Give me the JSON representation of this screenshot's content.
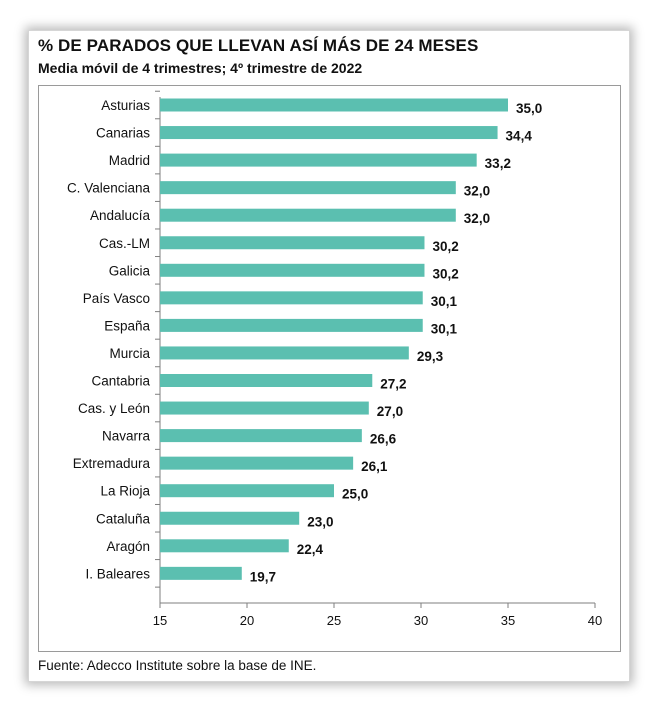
{
  "chart_data": {
    "type": "bar",
    "orientation": "horizontal",
    "title": "% DE PARADOS QUE LLEVAN ASÍ MÁS DE 24 MESES",
    "subtitle": "Media móvil de 4 trimestres; 4º trimestre de 2022",
    "categories": [
      "Asturias",
      "Canarias",
      "Madrid",
      "C. Valenciana",
      "Andalucía",
      "Cas.-LM",
      "Galicia",
      "País Vasco",
      "España",
      "Murcia",
      "Cantabria",
      "Cas. y León",
      "Navarra",
      "Extremadura",
      "La Rioja",
      "Cataluña",
      "Aragón",
      "I. Baleares"
    ],
    "values": [
      35.0,
      34.4,
      33.2,
      32.0,
      32.0,
      30.2,
      30.2,
      30.1,
      30.1,
      29.3,
      27.2,
      27.0,
      26.6,
      26.1,
      25.0,
      23.0,
      22.4,
      19.7
    ],
    "value_labels": [
      "35,0",
      "34,4",
      "33,2",
      "32,0",
      "32,0",
      "30,2",
      "30,2",
      "30,1",
      "30,1",
      "29,3",
      "27,2",
      "27,0",
      "26,6",
      "26,1",
      "25,0",
      "23,0",
      "22,4",
      "19,7"
    ],
    "xlim": [
      15,
      40
    ],
    "xticks": [
      "15",
      "20",
      "25",
      "30",
      "35",
      "40"
    ],
    "xlabel": "",
    "ylabel": "",
    "grid": false,
    "bar_color": "#5BBFB0"
  },
  "source": "Fuente: Adecco Institute sobre la base de INE."
}
